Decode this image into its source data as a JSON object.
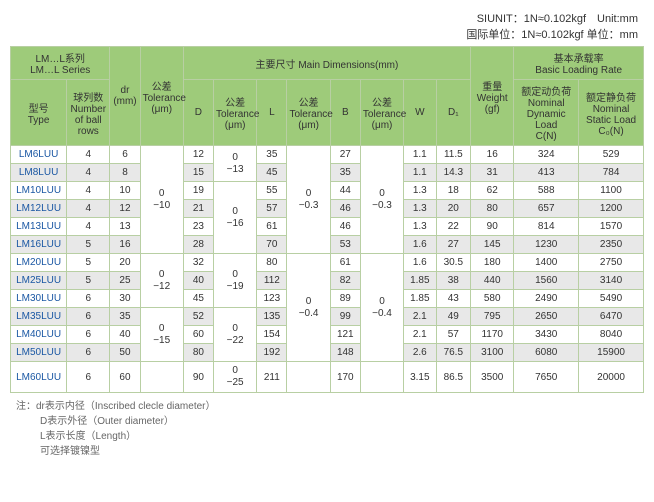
{
  "units_line1": "SIUNIT：1N≈0.102kgf Unit:mm",
  "units_line2": "国际单位：1N≈0.102kgf 单位：mm",
  "headers": {
    "series": "LM…L系列\nLM…L Series",
    "type": "型号\nType",
    "ballrows": "球列数\nNumber\nof ball\nrows",
    "dr": "dr\n(mm)",
    "tol_dr": "公差\nTolerance\n(μm)",
    "main_dims": "主要尺寸  Main Dimensions(mm)",
    "D": "D",
    "tol_D": "公差\nTolerance\n(μm)",
    "L": "L",
    "tol_L": "公差\nTolerance\n(μm)",
    "B": "B",
    "tol_B": "公差\nTolerance\n(μm)",
    "W": "W",
    "D1": "D₁",
    "weight": "重量\nWeight\n(gf)",
    "loading": "基本承载率\nBasic Loading Rate",
    "dyn": "额定动负荷\nNominal\nDynamic Load\nC(N)",
    "stat": "额定静负荷\nNominal\nStatic Load\nC₀(N)"
  },
  "tol_groups": {
    "dr1": "0\n−10",
    "dr2": "0\n−12",
    "dr3": "0\n−15",
    "D1": "0\n−13",
    "D2": "0\n−16",
    "D3": "0\n−19",
    "D4": "0\n−22",
    "D5": "0\n−25",
    "L1": "0\n−0.3",
    "L2": "0\n−0.4",
    "B1": "0\n−0.3",
    "B2": "0\n−0.4"
  },
  "rows": [
    {
      "type": "LM6LUU",
      "balls": "4",
      "dr": "6",
      "D": "12",
      "L": "35",
      "B": "27",
      "W": "1.1",
      "D1": "11.5",
      "wt": "16",
      "dyn": "324",
      "stat": "529"
    },
    {
      "type": "LM8LUU",
      "balls": "4",
      "dr": "8",
      "D": "15",
      "L": "45",
      "B": "35",
      "W": "1.1",
      "D1": "14.3",
      "wt": "31",
      "dyn": "413",
      "stat": "784"
    },
    {
      "type": "LM10LUU",
      "balls": "4",
      "dr": "10",
      "D": "19",
      "L": "55",
      "B": "44",
      "W": "1.3",
      "D1": "18",
      "wt": "62",
      "dyn": "588",
      "stat": "1100"
    },
    {
      "type": "LM12LUU",
      "balls": "4",
      "dr": "12",
      "D": "21",
      "L": "57",
      "B": "46",
      "W": "1.3",
      "D1": "20",
      "wt": "80",
      "dyn": "657",
      "stat": "1200"
    },
    {
      "type": "LM13LUU",
      "balls": "4",
      "dr": "13",
      "D": "23",
      "L": "61",
      "B": "46",
      "W": "1.3",
      "D1": "22",
      "wt": "90",
      "dyn": "814",
      "stat": "1570"
    },
    {
      "type": "LM16LUU",
      "balls": "5",
      "dr": "16",
      "D": "28",
      "L": "70",
      "B": "53",
      "W": "1.6",
      "D1": "27",
      "wt": "145",
      "dyn": "1230",
      "stat": "2350"
    },
    {
      "type": "LM20LUU",
      "balls": "5",
      "dr": "20",
      "D": "32",
      "L": "80",
      "B": "61",
      "W": "1.6",
      "D1": "30.5",
      "wt": "180",
      "dyn": "1400",
      "stat": "2750"
    },
    {
      "type": "LM25LUU",
      "balls": "5",
      "dr": "25",
      "D": "40",
      "L": "112",
      "B": "82",
      "W": "1.85",
      "D1": "38",
      "wt": "440",
      "dyn": "1560",
      "stat": "3140"
    },
    {
      "type": "LM30LUU",
      "balls": "6",
      "dr": "30",
      "D": "45",
      "L": "123",
      "B": "89",
      "W": "1.85",
      "D1": "43",
      "wt": "580",
      "dyn": "2490",
      "stat": "5490"
    },
    {
      "type": "LM35LUU",
      "balls": "6",
      "dr": "35",
      "D": "52",
      "L": "135",
      "B": "99",
      "W": "2.1",
      "D1": "49",
      "wt": "795",
      "dyn": "2650",
      "stat": "6470"
    },
    {
      "type": "LM40LUU",
      "balls": "6",
      "dr": "40",
      "D": "60",
      "L": "154",
      "B": "121",
      "W": "2.1",
      "D1": "57",
      "wt": "1170",
      "dyn": "3430",
      "stat": "8040"
    },
    {
      "type": "LM50LUU",
      "balls": "6",
      "dr": "50",
      "D": "80",
      "L": "192",
      "B": "148",
      "W": "2.6",
      "D1": "76.5",
      "wt": "3100",
      "dyn": "6080",
      "stat": "15900"
    },
    {
      "type": "LM60LUU",
      "balls": "6",
      "dr": "60",
      "D": "90",
      "L": "211",
      "B": "170",
      "W": "3.15",
      "D1": "86.5",
      "wt": "3500",
      "dyn": "7650",
      "stat": "20000"
    }
  ],
  "footer": {
    "l1": "注：dr表示内径（Inscribed clecle diameter）",
    "l2": "D表示外径（Outer diameter）",
    "l3": "L表示长度（Length）",
    "l4": "可选择镀镍型"
  }
}
